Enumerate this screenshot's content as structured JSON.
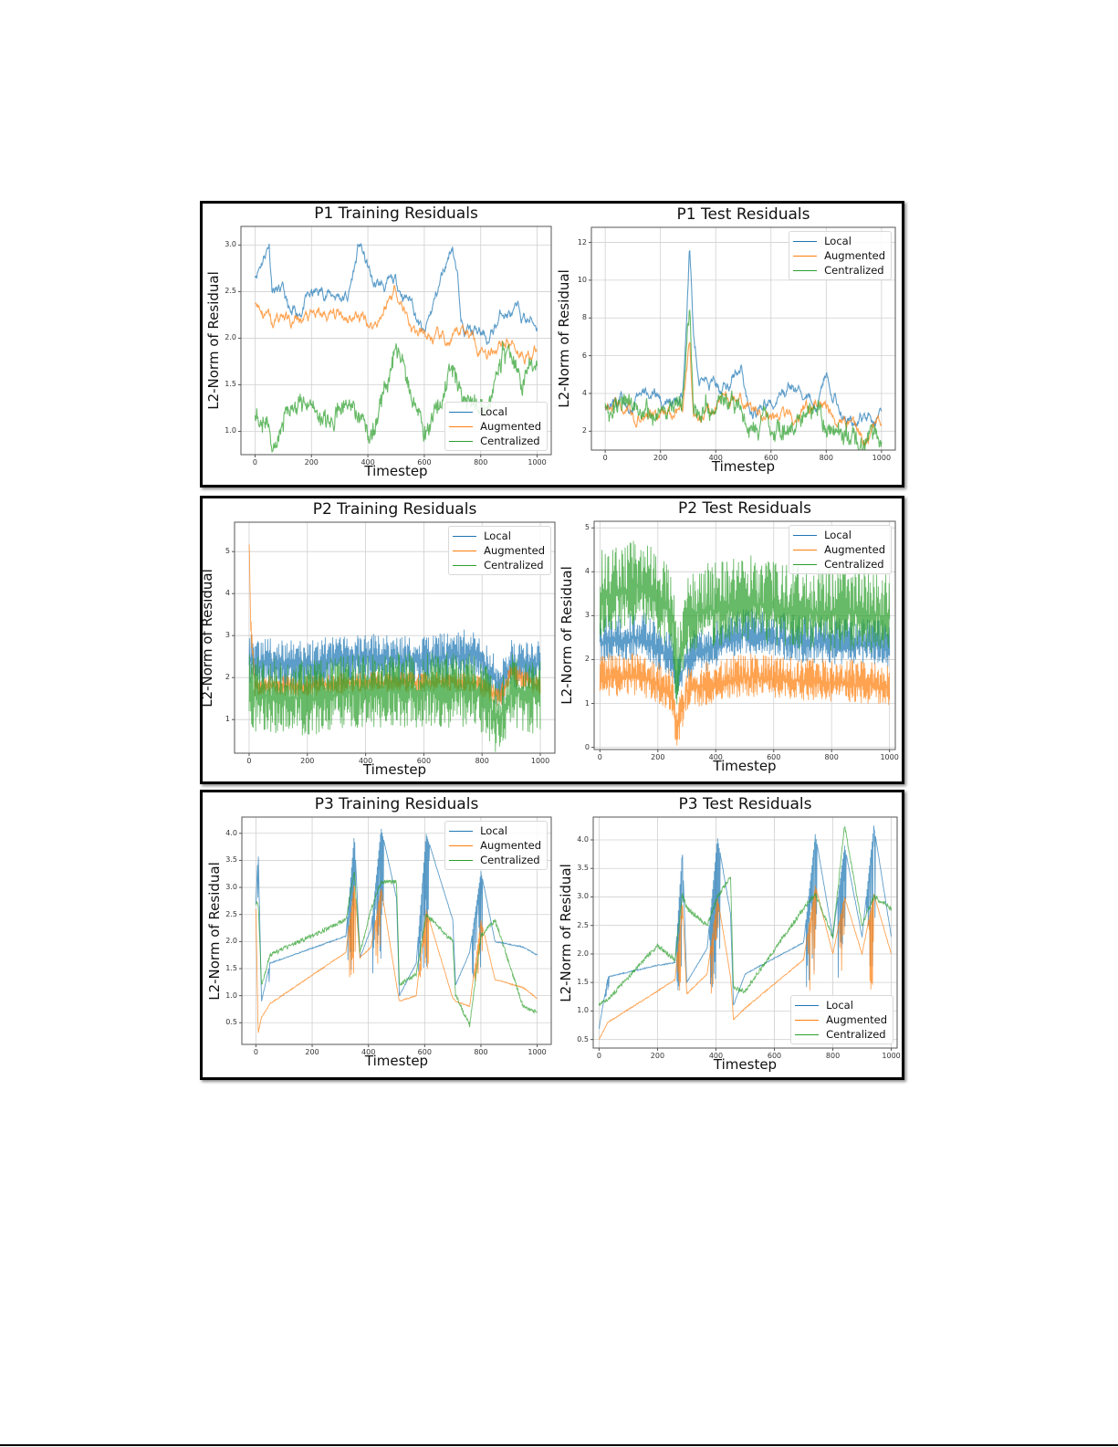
{
  "colors": {
    "local": "#1f77b4",
    "augmented": "#ff7f0e",
    "centralized": "#2ca02c",
    "grid": "#d0d0d0",
    "axis": "#555555"
  },
  "legend": [
    "Local",
    "Augmented",
    "Centralized"
  ],
  "common": {
    "xlabel": "Timestep",
    "ylabel": "L2-Norm of Residual"
  },
  "chart_data": [
    {
      "id": "p1-train",
      "type": "line",
      "title": "P1 Training Residuals",
      "xlabel": "Timestep",
      "ylabel": "L2-Norm of Residual",
      "xlim": [
        -50,
        1050
      ],
      "ylim": [
        0.75,
        3.2
      ],
      "xticks": [
        0,
        200,
        400,
        600,
        800,
        1000
      ],
      "yticks": [
        1.0,
        1.5,
        2.0,
        2.5,
        3.0
      ],
      "ytick_labels": [
        "1.0",
        "1.5",
        "2.0",
        "2.5",
        "3.0"
      ],
      "legend_position": "lower right",
      "grid": true,
      "x": [
        0,
        50,
        60,
        100,
        130,
        180,
        250,
        330,
        370,
        420,
        500,
        560,
        600,
        700,
        740,
        830,
        880,
        950,
        1000
      ],
      "series": [
        {
          "name": "Local",
          "values": [
            2.7,
            3.05,
            2.6,
            2.45,
            2.15,
            2.4,
            2.5,
            2.45,
            3.0,
            2.55,
            2.55,
            2.4,
            2.0,
            3.05,
            2.1,
            1.97,
            2.3,
            2.2,
            2.15
          ]
        },
        {
          "name": "Augmented",
          "values": [
            2.42,
            2.2,
            2.1,
            2.25,
            2.15,
            2.2,
            2.2,
            2.27,
            2.25,
            2.15,
            2.55,
            2.1,
            2.0,
            1.9,
            2.1,
            1.88,
            2.03,
            1.9,
            1.85
          ]
        },
        {
          "name": "Centralized",
          "values": [
            1.15,
            1.1,
            0.9,
            1.15,
            1.3,
            1.25,
            1.15,
            1.3,
            1.2,
            0.95,
            1.95,
            1.3,
            0.85,
            1.7,
            1.3,
            1.3,
            1.85,
            1.55,
            1.85
          ]
        }
      ]
    },
    {
      "id": "p1-test",
      "type": "line",
      "title": "P1 Test Residuals",
      "xlabel": "Timestep",
      "ylabel": "L2-Norm of Residual",
      "xlim": [
        -50,
        1050
      ],
      "ylim": [
        1.0,
        12.8
      ],
      "xticks": [
        0,
        200,
        400,
        600,
        800,
        1000
      ],
      "yticks": [
        2,
        4,
        6,
        8,
        10,
        12
      ],
      "ytick_labels": [
        "2",
        "4",
        "6",
        "8",
        "10",
        "12"
      ],
      "legend_position": "upper right",
      "grid": true,
      "x": [
        0,
        50,
        100,
        160,
        220,
        280,
        305,
        320,
        340,
        420,
        490,
        530,
        560,
        680,
        760,
        800,
        850,
        900,
        960,
        1000
      ],
      "series": [
        {
          "name": "Local",
          "values": [
            3.5,
            3.7,
            3.4,
            3.95,
            3.3,
            3.3,
            12.2,
            7.0,
            5.0,
            4.2,
            5.7,
            3.0,
            3.0,
            4.1,
            3.5,
            5.2,
            3.5,
            2.3,
            2.9,
            2.4
          ]
        },
        {
          "name": "Augmented",
          "values": [
            3.5,
            3.6,
            3.0,
            2.9,
            3.1,
            3.0,
            7.0,
            2.6,
            2.8,
            3.9,
            3.5,
            3.0,
            3.0,
            2.4,
            3.6,
            3.5,
            2.4,
            2.1,
            1.9,
            1.8
          ]
        },
        {
          "name": "Centralized",
          "values": [
            3.3,
            3.4,
            3.2,
            3.0,
            3.1,
            3.1,
            8.4,
            3.0,
            2.7,
            3.5,
            3.0,
            2.2,
            2.6,
            1.9,
            3.5,
            2.5,
            2.0,
            1.8,
            1.7,
            1.8
          ]
        }
      ]
    },
    {
      "id": "p2-train",
      "type": "line",
      "title": "P2 Training Residuals",
      "xlabel": "Timestep",
      "ylabel": "L2-Norm of Residual",
      "xlim": [
        -50,
        1050
      ],
      "ylim": [
        0.2,
        5.7
      ],
      "xticks": [
        0,
        200,
        400,
        600,
        800,
        1000
      ],
      "yticks": [
        1,
        2,
        3,
        4,
        5
      ],
      "ytick_labels": [
        "1",
        "2",
        "3",
        "4",
        "5"
      ],
      "legend_position": "upper right",
      "grid": true,
      "x": [
        0,
        5,
        20,
        200,
        400,
        600,
        780,
        860,
        900,
        1000
      ],
      "series": [
        {
          "name": "Local",
          "values": [
            2.3,
            2.5,
            2.4,
            2.3,
            2.5,
            2.4,
            2.6,
            1.8,
            2.3,
            2.3
          ]
        },
        {
          "name": "Augmented",
          "values": [
            5.4,
            3.3,
            1.8,
            1.8,
            1.9,
            1.9,
            1.9,
            1.5,
            2.1,
            1.8
          ]
        },
        {
          "name": "Centralized",
          "values": [
            1.8,
            1.7,
            1.6,
            1.5,
            1.7,
            1.7,
            1.7,
            1.0,
            1.7,
            1.5
          ]
        }
      ]
    },
    {
      "id": "p2-test",
      "type": "line",
      "title": "P2 Test Residuals",
      "xlabel": "Timestep",
      "ylabel": "L2-Norm of Residual",
      "xlim": [
        -20,
        1020
      ],
      "ylim": [
        -0.05,
        5.15
      ],
      "xticks": [
        0,
        200,
        400,
        600,
        800,
        1000
      ],
      "yticks": [
        0,
        1,
        2,
        3,
        4,
        5
      ],
      "ytick_labels": [
        "0",
        "1",
        "2",
        "3",
        "4",
        "5"
      ],
      "legend_position": "upper right",
      "grid": true,
      "x": [
        0,
        150,
        250,
        265,
        300,
        500,
        700,
        1000
      ],
      "series": [
        {
          "name": "Local",
          "values": [
            2.4,
            2.5,
            2.0,
            1.4,
            2.0,
            2.6,
            2.4,
            2.3
          ]
        },
        {
          "name": "Augmented",
          "values": [
            1.6,
            1.6,
            1.2,
            0.3,
            1.3,
            1.6,
            1.5,
            1.4
          ]
        },
        {
          "name": "Centralized",
          "values": [
            3.4,
            3.7,
            3.0,
            1.5,
            3.0,
            3.3,
            3.1,
            3.0
          ]
        }
      ]
    },
    {
      "id": "p3-train",
      "type": "line",
      "title": "P3 Training Residuals",
      "xlabel": "Timestep",
      "ylabel": "L2-Norm of Residual",
      "xlim": [
        -50,
        1050
      ],
      "ylim": [
        0.1,
        4.3
      ],
      "xticks": [
        0,
        200,
        400,
        600,
        800,
        1000
      ],
      "yticks": [
        0.5,
        1.0,
        1.5,
        2.0,
        2.5,
        3.0,
        3.5,
        4.0
      ],
      "ytick_labels": [
        "0.5",
        "1.0",
        "1.5",
        "2.0",
        "2.5",
        "3.0",
        "3.5",
        "4.0"
      ],
      "legend_position": "upper right",
      "grid": true,
      "x": [
        0,
        8,
        20,
        50,
        320,
        350,
        370,
        410,
        445,
        500,
        510,
        570,
        605,
        700,
        710,
        760,
        800,
        850,
        950,
        1000
      ],
      "series": [
        {
          "name": "Local",
          "values": [
            2.7,
            3.7,
            0.9,
            1.6,
            2.1,
            4.0,
            1.7,
            2.25,
            4.1,
            2.8,
            1.0,
            1.6,
            4.0,
            2.4,
            1.2,
            1.8,
            3.3,
            2.0,
            1.9,
            1.75
          ]
        },
        {
          "name": "Augmented",
          "values": [
            2.6,
            0.3,
            0.6,
            0.85,
            1.8,
            3.1,
            1.7,
            1.9,
            3.0,
            1.2,
            0.9,
            1.0,
            2.6,
            0.95,
            0.9,
            0.8,
            2.4,
            1.3,
            1.15,
            0.95
          ]
        },
        {
          "name": "Centralized",
          "values": [
            2.7,
            2.7,
            1.2,
            1.75,
            2.4,
            3.3,
            1.8,
            2.6,
            3.1,
            3.1,
            1.2,
            1.4,
            2.5,
            2.0,
            1.0,
            0.45,
            2.1,
            2.4,
            0.8,
            0.7
          ]
        }
      ]
    },
    {
      "id": "p3-test",
      "type": "line",
      "title": "P3 Test Residuals",
      "xlabel": "Timestep",
      "ylabel": "L2-Norm of Residual",
      "xlim": [
        -20,
        1020
      ],
      "ylim": [
        0.35,
        4.4
      ],
      "xticks": [
        0,
        200,
        400,
        600,
        800,
        1000
      ],
      "yticks": [
        0.5,
        1.0,
        1.5,
        2.0,
        2.5,
        3.0,
        3.5,
        4.0
      ],
      "ytick_labels": [
        "0.5",
        "1.0",
        "1.5",
        "2.0",
        "2.5",
        "3.0",
        "3.5",
        "4.0"
      ],
      "legend_position": "lower right",
      "grid": true,
      "x": [
        0,
        30,
        200,
        260,
        285,
        300,
        370,
        405,
        450,
        460,
        500,
        700,
        740,
        800,
        840,
        900,
        940,
        1000
      ],
      "series": [
        {
          "name": "Local",
          "values": [
            0.7,
            1.6,
            1.8,
            1.85,
            3.85,
            1.5,
            2.1,
            4.05,
            2.7,
            1.1,
            1.65,
            2.2,
            4.1,
            2.3,
            3.9,
            2.3,
            4.25,
            2.3
          ]
        },
        {
          "name": "Augmented",
          "values": [
            0.5,
            0.8,
            1.35,
            1.55,
            2.95,
            1.3,
            1.65,
            3.0,
            1.6,
            0.85,
            1.05,
            1.9,
            3.2,
            2.0,
            3.0,
            2.0,
            3.05,
            2.0
          ]
        },
        {
          "name": "Centralized",
          "values": [
            1.1,
            1.2,
            2.15,
            1.9,
            3.05,
            2.8,
            2.5,
            3.0,
            3.35,
            1.4,
            1.35,
            2.8,
            3.05,
            2.3,
            4.25,
            2.5,
            3.0,
            2.8
          ]
        }
      ]
    }
  ]
}
